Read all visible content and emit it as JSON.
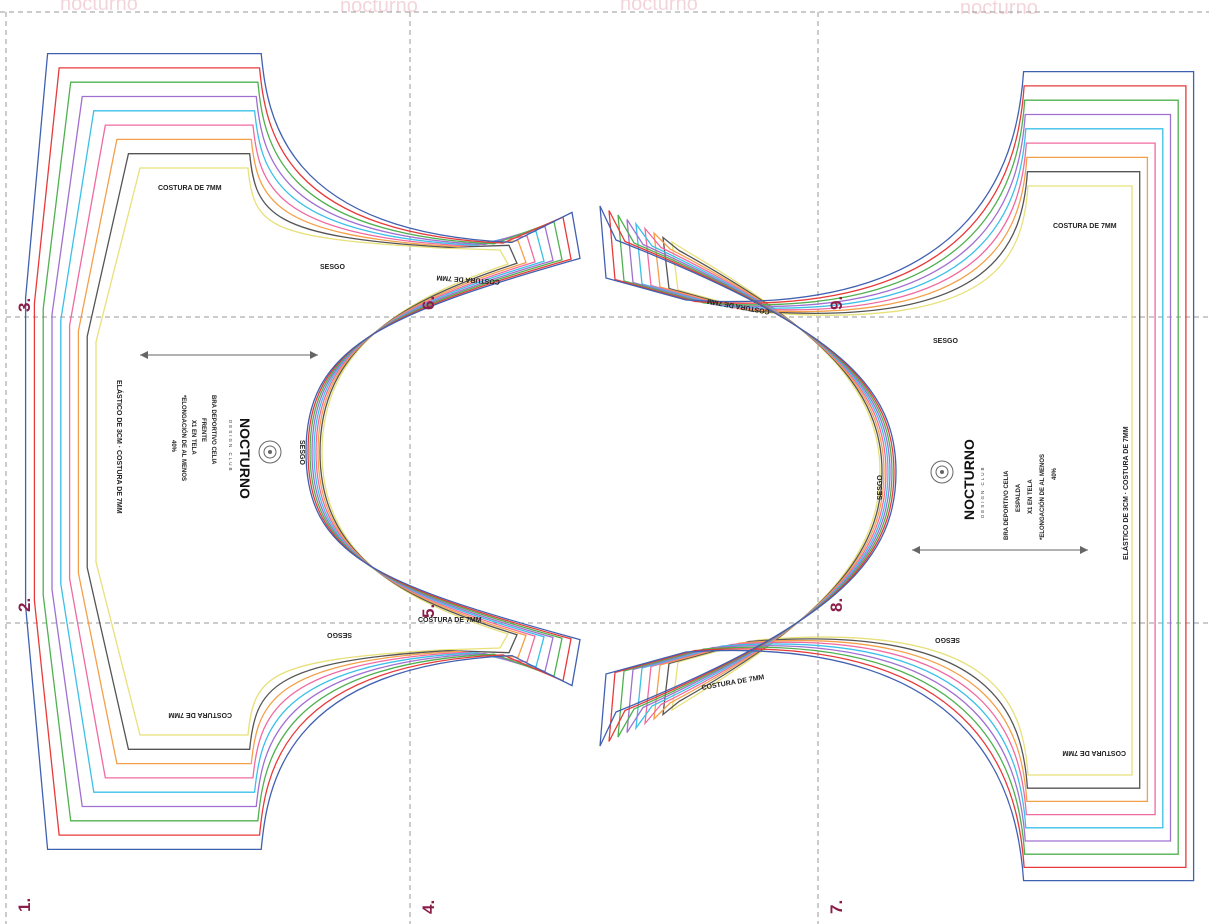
{
  "page_numbers": [
    "1.",
    "2.",
    "3.",
    "4.",
    "5.",
    "6.",
    "7.",
    "8.",
    "9."
  ],
  "front": {
    "brand": "NOCTURNO",
    "brand_sub": "DESIGN CLUB",
    "info_lines": [
      "BRA DEPORTIVO CELIA",
      "FRENTE",
      "X1 EN TELA",
      "*ELONGACIÓN DE AL MENOS",
      "40%"
    ],
    "seam_top": "COSTURA DE 7MM",
    "seam_bottom": "COSTURA DE 7MM",
    "side_note": "ELÁSTICO DE 3CM · COSTURA DE 7MM",
    "bias_top": "SESGO",
    "bias_bottom": "SESGO",
    "bias_armhole": "SESGO",
    "strap_top": "COSTURA DE 7MM",
    "strap_bottom": "COSTURA DE 7MM"
  },
  "back": {
    "brand": "NOCTURNO",
    "brand_sub": "DESIGN CLUB",
    "info_lines": [
      "BRA DEPORTIVO CELIA",
      "ESPALDA",
      "X1 EN TELA",
      "*ELONGACIÓN DE AL MENOS",
      "40%"
    ],
    "seam_top": "COSTURA DE 7MM",
    "seam_bottom": "COSTURA DE 7MM",
    "side_note": "ELÁSTICO DE 3CM · COSTURA DE 7MM",
    "bias_top": "SESGO",
    "bias_bottom": "SESGO",
    "bias_armhole": "SESGO",
    "strap_top": "COSTURA DE 7MM",
    "strap_bottom": "COSTURA DE 7MM"
  },
  "watermark": "nocturno",
  "size_colors": [
    "#e8e07a",
    "#555555",
    "#f4a04a",
    "#f06aa0",
    "#3cc0e8",
    "#a070d0",
    "#50b050",
    "#e83a3a",
    "#4060b0"
  ]
}
